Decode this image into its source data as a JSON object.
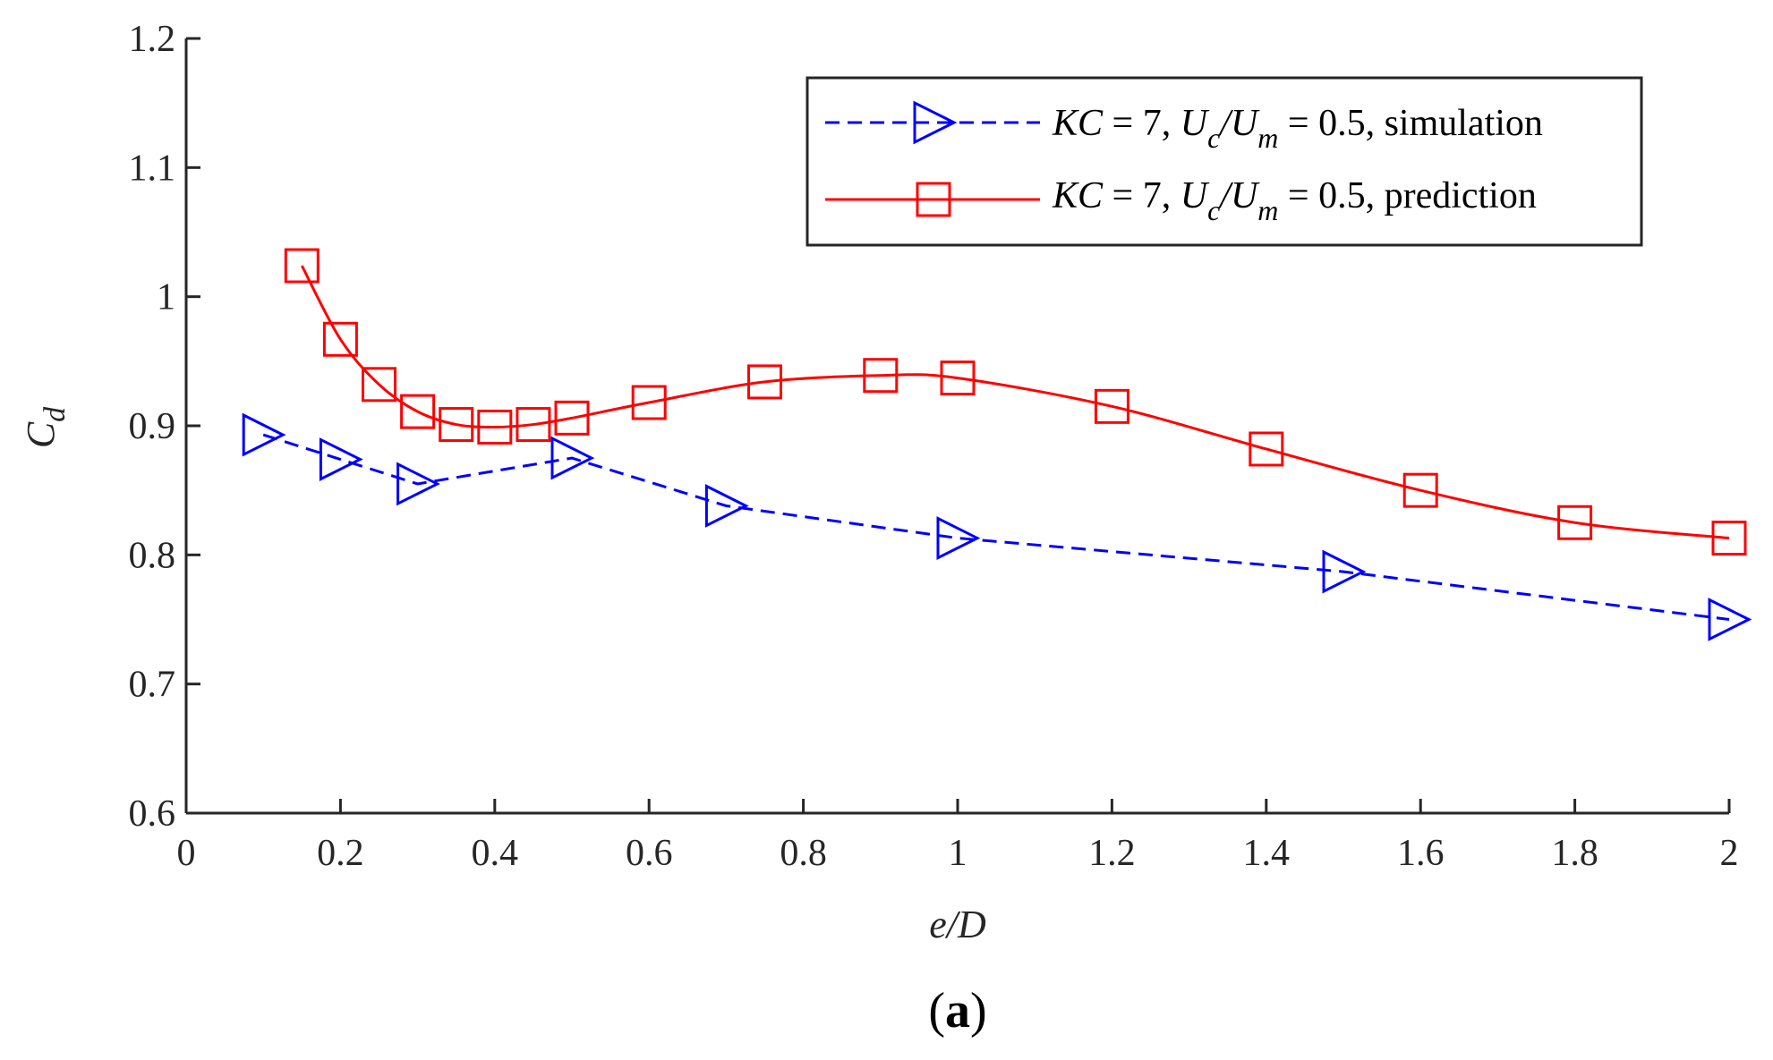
{
  "chart_data": {
    "type": "line",
    "title": "",
    "panel_label": {
      "open": "(",
      "letter": "a",
      "close": ")"
    },
    "xlabel": "e/D",
    "ylabel": {
      "main": "C",
      "sub": "d"
    },
    "xlim": [
      0,
      2
    ],
    "ylim": [
      0.6,
      1.2
    ],
    "xticks": [
      0,
      0.2,
      0.4,
      0.6,
      0.8,
      1,
      1.2,
      1.4,
      1.6,
      1.8,
      2
    ],
    "xtick_labels": [
      "0",
      "0.2",
      "0.4",
      "0.6",
      "0.8",
      "1",
      "1.2",
      "1.4",
      "1.6",
      "1.8",
      "2"
    ],
    "yticks": [
      0.6,
      0.7,
      0.8,
      0.9,
      1.0,
      1.1,
      1.2
    ],
    "ytick_labels": [
      "0.6",
      "0.7",
      "0.8",
      "0.9",
      "1",
      "1.1",
      "1.2"
    ],
    "grid": false,
    "legend_position": "top-right",
    "series": [
      {
        "name": "simulation",
        "color": "#0000ff",
        "marker": "triangle-right",
        "line_style": "dashed",
        "smooth": false,
        "legend": {
          "kc": "KC",
          "eq1": " = 7, ",
          "u1": "U",
          "u1sub": "c",
          "slash": "/",
          "u2": "U",
          "u2sub": "m",
          "rest": " = 0.5, simulation"
        },
        "x": [
          0.1,
          0.2,
          0.3,
          0.5,
          0.7,
          1.0,
          1.5,
          2.0
        ],
        "y": [
          0.893,
          0.874,
          0.855,
          0.875,
          0.838,
          0.813,
          0.787,
          0.75
        ]
      },
      {
        "name": "prediction",
        "color": "#ff0000",
        "marker": "square",
        "line_style": "solid",
        "smooth": true,
        "legend": {
          "kc": "KC",
          "eq1": " = 7, ",
          "u1": "U",
          "u1sub": "c",
          "slash": "/",
          "u2": "U",
          "u2sub": "m",
          "rest": " = 0.5, prediction"
        },
        "x": [
          0.15,
          0.2,
          0.25,
          0.3,
          0.35,
          0.4,
          0.45,
          0.5,
          0.6,
          0.75,
          0.9,
          1.0,
          1.2,
          1.4,
          1.6,
          1.8,
          2.0
        ],
        "y": [
          1.024,
          0.967,
          0.932,
          0.911,
          0.901,
          0.899,
          0.901,
          0.906,
          0.918,
          0.934,
          0.939,
          0.937,
          0.915,
          0.882,
          0.85,
          0.825,
          0.813
        ]
      }
    ]
  }
}
